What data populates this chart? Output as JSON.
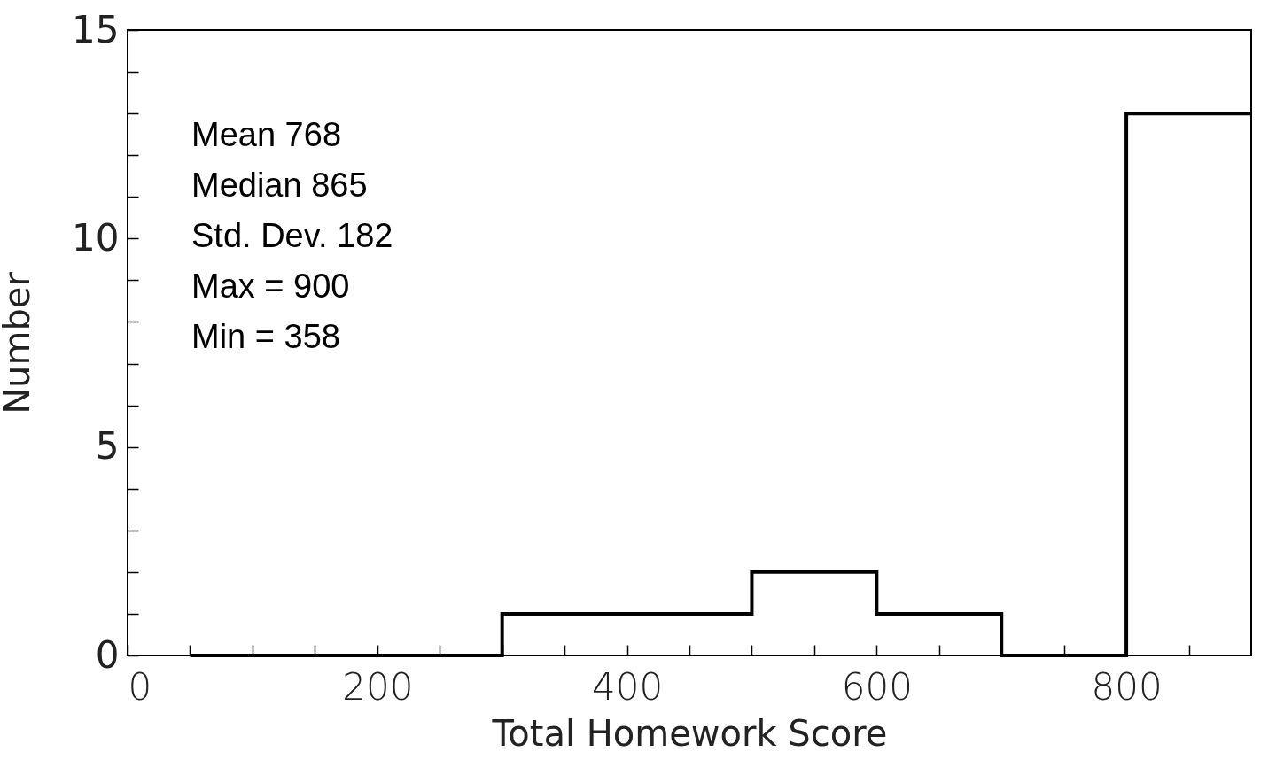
{
  "chart_data": {
    "type": "histogram",
    "xlabel": "Total Homework Score",
    "ylabel": "Number",
    "bins": [
      50,
      100,
      200,
      300,
      400,
      500,
      600,
      700,
      800,
      900
    ],
    "values": [
      0,
      0,
      0,
      1,
      1,
      2,
      1,
      0,
      13
    ],
    "color": "#000000",
    "xlim": [
      0,
      900
    ],
    "xticks": [
      0,
      {
        "value": 50,
        "label": null
      },
      {
        "value": 100,
        "label": null
      },
      {
        "value": 150,
        "label": null
      },
      200,
      {
        "value": 250,
        "label": null
      },
      {
        "value": 300,
        "label": null
      },
      {
        "value": 350,
        "label": null
      },
      400,
      {
        "value": 450,
        "label": null
      },
      {
        "value": 500,
        "label": null
      },
      {
        "value": 550,
        "label": null
      },
      600,
      {
        "value": 650,
        "label": null
      },
      {
        "value": 700,
        "label": null
      },
      {
        "value": 750,
        "label": null
      },
      800,
      {
        "value": 850,
        "label": null
      }
    ],
    "ylim": [
      0,
      15
    ],
    "yticks": [
      0,
      {
        "value": 1,
        "label": null
      },
      {
        "value": 2,
        "label": null
      },
      {
        "value": 3,
        "label": null
      },
      {
        "value": 4,
        "label": null
      },
      5,
      {
        "value": 6,
        "label": null
      },
      {
        "value": 7,
        "label": null
      },
      {
        "value": 8,
        "label": null
      },
      {
        "value": 9,
        "label": null
      },
      10,
      {
        "value": 11,
        "label": null
      },
      {
        "value": 12,
        "label": null
      },
      {
        "value": 13,
        "label": null
      },
      {
        "value": 14,
        "label": null
      },
      15
    ],
    "annotations": [
      "Mean 768",
      "Median 865",
      "Std. Dev. 182",
      "Max = 900",
      "Min = 358"
    ],
    "grid": false
  }
}
